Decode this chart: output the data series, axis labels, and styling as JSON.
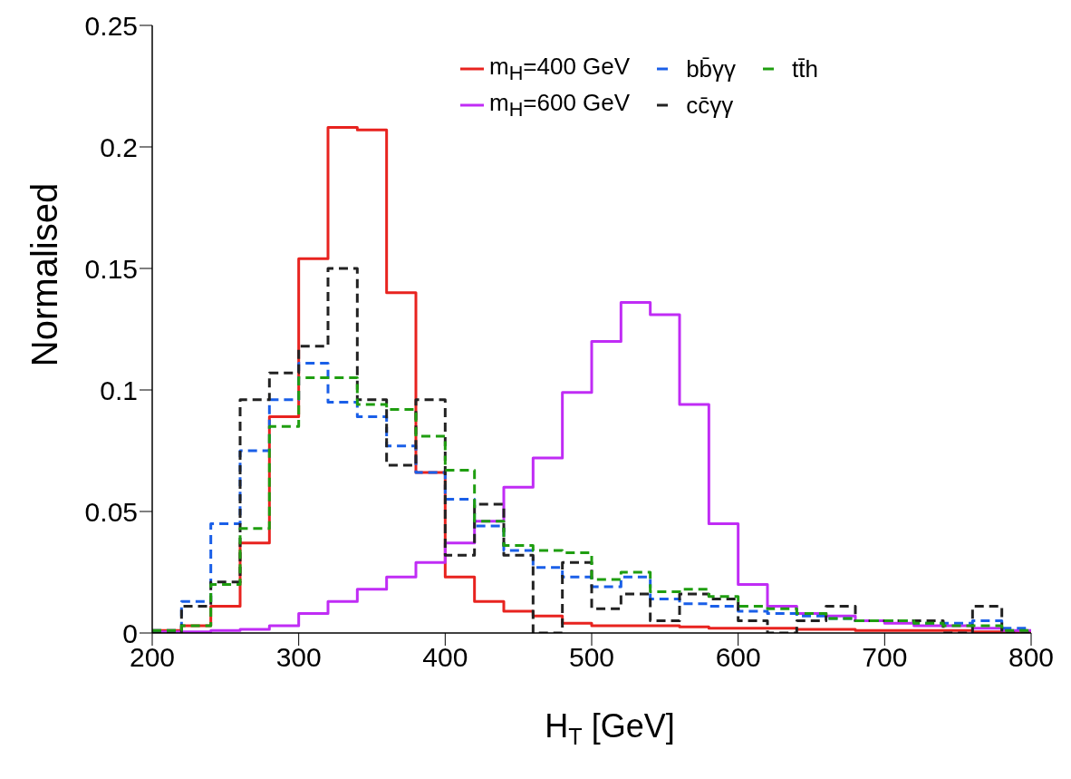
{
  "chart_data": {
    "type": "histogram",
    "xlabel": "H$_{T}$ [GeV]",
    "ylabel": "Normalised",
    "bins": [
      200,
      220,
      240,
      260,
      280,
      300,
      320,
      340,
      360,
      380,
      400,
      420,
      440,
      460,
      480,
      500,
      520,
      540,
      560,
      580,
      600,
      620,
      640,
      660,
      680,
      700,
      720,
      740,
      760,
      780,
      800
    ],
    "series": [
      {
        "name": "m$_{H}$=400 GeV",
        "color": "#e8231f",
        "line_style": "solid",
        "values": [
          0.001,
          0.003,
          0.011,
          0.037,
          0.089,
          0.154,
          0.208,
          0.207,
          0.14,
          0.066,
          0.023,
          0.013,
          0.009,
          0.007,
          0.004,
          0.003,
          0.003,
          0.003,
          0.0025,
          0.002,
          0.002,
          0.002,
          0.0015,
          0.0015,
          0.001,
          0.001,
          0.001,
          0.001,
          0.0005,
          0.0005
        ]
      },
      {
        "name": "m$_{H}$=600 GeV",
        "color": "#c02cf5",
        "line_style": "solid",
        "values": [
          0.0005,
          0.0005,
          0.001,
          0.0015,
          0.003,
          0.008,
          0.013,
          0.018,
          0.023,
          0.029,
          0.037,
          0.046,
          0.06,
          0.072,
          0.099,
          0.12,
          0.136,
          0.131,
          0.094,
          0.045,
          0.02,
          0.011,
          0.008,
          0.007,
          0.005,
          0.004,
          0.003,
          0.003,
          0.002,
          0.001
        ]
      },
      {
        "name": "bb̄γγ",
        "color": "#1a5fe8",
        "line_style": "dashed",
        "values": [
          0.001,
          0.013,
          0.045,
          0.075,
          0.096,
          0.111,
          0.095,
          0.089,
          0.077,
          0.066,
          0.055,
          0.044,
          0.034,
          0.027,
          0.023,
          0.019,
          0.023,
          0.014,
          0.012,
          0.011,
          0.009,
          0.008,
          0.007,
          0.006,
          0.005,
          0.005,
          0.004,
          0.004,
          0.005,
          0.002
        ]
      },
      {
        "name": "cc̄γγ",
        "color": "#222222",
        "line_style": "dashed",
        "values": [
          0.0,
          0.011,
          0.021,
          0.096,
          0.107,
          0.118,
          0.15,
          0.096,
          0.069,
          0.096,
          0.032,
          0.053,
          0.032,
          0.0,
          0.029,
          0.01,
          0.016,
          0.005,
          0.016,
          0.014,
          0.005,
          0.0,
          0.005,
          0.011,
          0.005,
          0.005,
          0.005,
          0.0,
          0.011,
          0.0
        ]
      },
      {
        "name": "tt̄h",
        "color": "#1f9e10",
        "line_style": "dashed",
        "values": [
          0.001,
          0.003,
          0.02,
          0.043,
          0.085,
          0.105,
          0.105,
          0.094,
          0.092,
          0.081,
          0.067,
          0.046,
          0.036,
          0.034,
          0.033,
          0.022,
          0.025,
          0.017,
          0.018,
          0.015,
          0.011,
          0.01,
          0.008,
          0.006,
          0.005,
          0.005,
          0.004,
          0.003,
          0.003,
          0.001
        ]
      }
    ],
    "xlim": [
      200,
      800
    ],
    "xticks": [
      200,
      300,
      400,
      500,
      600,
      700,
      800
    ],
    "ylim": [
      0,
      0.25
    ],
    "yticks": [
      0,
      0.05,
      0.1,
      0.15,
      0.2,
      0.25
    ],
    "grid": false,
    "legend": "top"
  }
}
